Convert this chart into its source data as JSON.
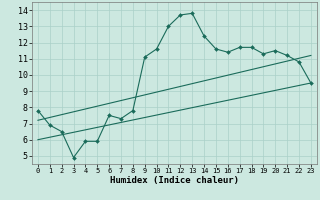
{
  "title": "",
  "xlabel": "Humidex (Indice chaleur)",
  "bg_color": "#cce8e0",
  "grid_color": "#aad0c8",
  "line_color": "#1a6b5a",
  "xlim": [
    -0.5,
    23.5
  ],
  "ylim": [
    4.5,
    14.5
  ],
  "xticks": [
    0,
    1,
    2,
    3,
    4,
    5,
    6,
    7,
    8,
    9,
    10,
    11,
    12,
    13,
    14,
    15,
    16,
    17,
    18,
    19,
    20,
    21,
    22,
    23
  ],
  "yticks": [
    5,
    6,
    7,
    8,
    9,
    10,
    11,
    12,
    13,
    14
  ],
  "curve1_x": [
    0,
    1,
    2,
    3,
    4,
    5,
    6,
    7,
    8,
    9,
    10,
    11,
    12,
    13,
    14,
    15,
    16,
    17,
    18,
    19,
    20,
    21,
    22,
    23
  ],
  "curve1_y": [
    7.8,
    6.9,
    6.5,
    4.9,
    5.9,
    5.9,
    7.5,
    7.3,
    7.8,
    11.1,
    11.6,
    13.0,
    13.7,
    13.8,
    12.4,
    11.6,
    11.4,
    11.7,
    11.7,
    11.3,
    11.5,
    11.2,
    10.8,
    9.5
  ],
  "curve2_x": [
    0,
    23
  ],
  "curve2_y": [
    7.2,
    11.2
  ],
  "curve3_x": [
    0,
    23
  ],
  "curve3_y": [
    6.0,
    9.5
  ],
  "figsize": [
    3.2,
    2.0
  ],
  "dpi": 100
}
